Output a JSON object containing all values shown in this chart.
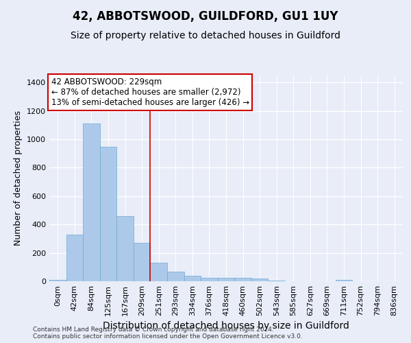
{
  "title": "42, ABBOTSWOOD, GUILDFORD, GU1 1UY",
  "subtitle": "Size of property relative to detached houses in Guildford",
  "xlabel": "Distribution of detached houses by size in Guildford",
  "ylabel": "Number of detached properties",
  "footer_line1": "Contains HM Land Registry data © Crown copyright and database right 2024.",
  "footer_line2": "Contains public sector information licensed under the Open Government Licence v3.0.",
  "bin_labels": [
    "0sqm",
    "42sqm",
    "84sqm",
    "125sqm",
    "167sqm",
    "209sqm",
    "251sqm",
    "293sqm",
    "334sqm",
    "376sqm",
    "418sqm",
    "460sqm",
    "502sqm",
    "543sqm",
    "585sqm",
    "627sqm",
    "669sqm",
    "711sqm",
    "752sqm",
    "794sqm",
    "836sqm"
  ],
  "bar_values": [
    10,
    330,
    1110,
    945,
    460,
    270,
    130,
    70,
    40,
    25,
    25,
    22,
    18,
    5,
    0,
    0,
    0,
    12,
    0,
    0,
    0
  ],
  "bar_color": "#adc9ea",
  "bar_edge_color": "#6aaad4",
  "vline_x": 5.5,
  "vline_color": "#cc0000",
  "annotation_line1": "42 ABBOTSWOOD: 229sqm",
  "annotation_line2": "← 87% of detached houses are smaller (2,972)",
  "annotation_line3": "13% of semi-detached houses are larger (426) →",
  "annotation_box_color": "white",
  "annotation_edge_color": "#cc0000",
  "ylim": [
    0,
    1450
  ],
  "yticks": [
    0,
    200,
    400,
    600,
    800,
    1000,
    1200,
    1400
  ],
  "bg_color": "#e8edf8",
  "plot_bg_color": "#e8edf8",
  "grid_color": "white",
  "title_fontsize": 12,
  "subtitle_fontsize": 10,
  "xlabel_fontsize": 10,
  "ylabel_fontsize": 9,
  "tick_fontsize": 8,
  "annotation_fontsize": 8.5,
  "footer_fontsize": 6.5
}
